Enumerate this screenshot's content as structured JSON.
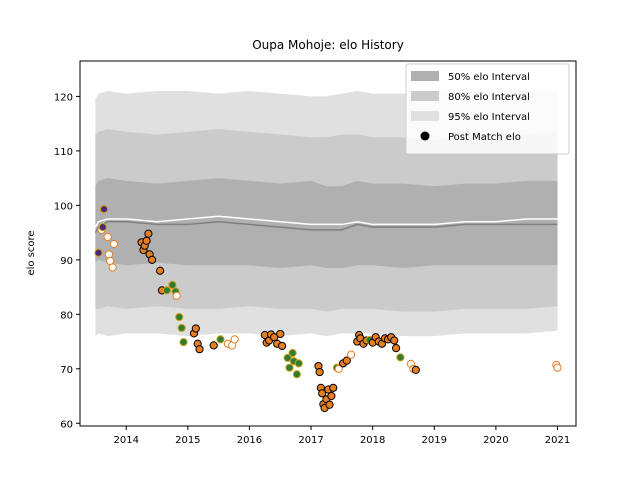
{
  "chart_data": {
    "type": "scatter",
    "title": "Oupa Mohoje: elo History",
    "xlabel": "",
    "ylabel": "elo score",
    "xlim": [
      2013.25,
      2021.3
    ],
    "ylim": [
      59.5,
      126.5
    ],
    "xticks": [
      2014,
      2015,
      2016,
      2017,
      2018,
      2019,
      2020,
      2021
    ],
    "yticks": [
      60,
      70,
      80,
      90,
      100,
      110,
      120
    ],
    "grid": false,
    "legend_position": "top-right",
    "colors": {
      "band_50": "#b0b0b0",
      "band_80": "#cbcbcb",
      "band_95": "#e0e0e0",
      "median_line": "#7f7f7f",
      "mean_line": "#ffffff",
      "point_fill_win": "#e67e22",
      "point_fill_draw": "#2e7d32",
      "point_fill_extra": "#4a2a73",
      "point_edge_dark": "#000000",
      "point_edge_light": "#d4a017",
      "point_open_edge": "#e67e22"
    },
    "legend": [
      {
        "label": "50% elo Interval",
        "kind": "band",
        "color_key": "band_50"
      },
      {
        "label": "80% elo Interval",
        "kind": "band",
        "color_key": "band_80"
      },
      {
        "label": "95% elo Interval",
        "kind": "band",
        "color_key": "band_95"
      },
      {
        "label": "Post Match elo",
        "kind": "point"
      }
    ],
    "bands": {
      "x": [
        2013.5,
        2013.55,
        2013.7,
        2014.0,
        2014.5,
        2015.0,
        2015.5,
        2016.0,
        2016.5,
        2017.0,
        2017.25,
        2017.5,
        2017.75,
        2018.0,
        2018.5,
        2019.0,
        2019.5,
        2020.0,
        2020.5,
        2021.0
      ],
      "p50_high": [
        103.5,
        104.5,
        105.0,
        104.5,
        104.0,
        104.5,
        105.0,
        104.5,
        104.0,
        104.5,
        103.5,
        103.5,
        104.5,
        104.0,
        104.0,
        103.5,
        104.0,
        104.0,
        104.5,
        104.5
      ],
      "p50_low": [
        89.5,
        90.0,
        89.5,
        89.0,
        89.5,
        89.0,
        89.0,
        89.0,
        88.5,
        89.0,
        88.5,
        88.5,
        89.0,
        89.0,
        88.5,
        89.0,
        89.0,
        89.0,
        89.0,
        89.0
      ],
      "p80_high": [
        113.0,
        113.5,
        114.0,
        113.5,
        113.0,
        113.5,
        114.0,
        113.5,
        113.0,
        112.5,
        112.5,
        113.0,
        113.0,
        112.5,
        112.5,
        112.0,
        112.5,
        113.0,
        113.0,
        113.5
      ],
      "p80_low": [
        81.0,
        81.0,
        81.5,
        81.0,
        81.5,
        81.0,
        81.0,
        81.5,
        81.0,
        81.0,
        80.5,
        81.0,
        81.0,
        81.0,
        80.5,
        80.5,
        81.0,
        81.0,
        81.0,
        81.5
      ],
      "p95_high": [
        119.5,
        120.5,
        121.0,
        120.5,
        121.0,
        121.0,
        120.5,
        121.0,
        120.5,
        120.0,
        120.0,
        120.5,
        121.0,
        120.5,
        120.5,
        121.0,
        121.0,
        120.5,
        121.0,
        121.0
      ],
      "p95_low": [
        76.0,
        76.5,
        76.0,
        76.5,
        76.5,
        76.0,
        76.5,
        76.5,
        76.0,
        76.5,
        76.0,
        76.5,
        76.5,
        76.5,
        76.0,
        76.0,
        76.5,
        76.5,
        76.5,
        77.0
      ],
      "median": [
        95.0,
        96.0,
        97.0,
        97.0,
        96.5,
        96.5,
        97.0,
        96.5,
        96.0,
        95.5,
        95.5,
        95.5,
        96.5,
        96.0,
        96.0,
        96.0,
        96.5,
        96.5,
        96.5,
        96.5
      ],
      "mean": [
        96.0,
        97.0,
        97.5,
        97.5,
        97.0,
        97.5,
        98.0,
        97.5,
        97.0,
        96.5,
        96.5,
        96.5,
        97.0,
        96.5,
        96.5,
        96.5,
        97.0,
        97.0,
        97.5,
        97.5
      ]
    },
    "points": [
      {
        "x": 2013.55,
        "y": 91.3,
        "style": "extra"
      },
      {
        "x": 2013.6,
        "y": 95.5,
        "style": "open"
      },
      {
        "x": 2013.62,
        "y": 96.0,
        "style": "extra"
      },
      {
        "x": 2013.64,
        "y": 99.3,
        "style": "extra"
      },
      {
        "x": 2013.7,
        "y": 94.2,
        "style": "open"
      },
      {
        "x": 2013.72,
        "y": 91.0,
        "style": "open"
      },
      {
        "x": 2013.74,
        "y": 89.8,
        "style": "open"
      },
      {
        "x": 2013.78,
        "y": 88.6,
        "style": "open"
      },
      {
        "x": 2013.8,
        "y": 92.9,
        "style": "open"
      },
      {
        "x": 2014.25,
        "y": 93.2,
        "style": "win"
      },
      {
        "x": 2014.28,
        "y": 91.8,
        "style": "win"
      },
      {
        "x": 2014.3,
        "y": 92.6,
        "style": "win"
      },
      {
        "x": 2014.33,
        "y": 93.5,
        "style": "win"
      },
      {
        "x": 2014.36,
        "y": 94.8,
        "style": "win"
      },
      {
        "x": 2014.38,
        "y": 91.0,
        "style": "win"
      },
      {
        "x": 2014.42,
        "y": 90.0,
        "style": "win"
      },
      {
        "x": 2014.55,
        "y": 88.0,
        "style": "win"
      },
      {
        "x": 2014.58,
        "y": 84.4,
        "style": "win"
      },
      {
        "x": 2014.66,
        "y": 84.4,
        "style": "draw"
      },
      {
        "x": 2014.75,
        "y": 85.4,
        "style": "draw"
      },
      {
        "x": 2014.8,
        "y": 84.2,
        "style": "draw"
      },
      {
        "x": 2014.82,
        "y": 83.4,
        "style": "open"
      },
      {
        "x": 2014.86,
        "y": 79.5,
        "style": "draw"
      },
      {
        "x": 2014.9,
        "y": 77.5,
        "style": "draw"
      },
      {
        "x": 2014.93,
        "y": 74.9,
        "style": "draw"
      },
      {
        "x": 2015.1,
        "y": 76.5,
        "style": "win"
      },
      {
        "x": 2015.13,
        "y": 77.4,
        "style": "win"
      },
      {
        "x": 2015.16,
        "y": 74.6,
        "style": "win"
      },
      {
        "x": 2015.19,
        "y": 73.6,
        "style": "win"
      },
      {
        "x": 2015.42,
        "y": 74.3,
        "style": "win"
      },
      {
        "x": 2015.53,
        "y": 75.4,
        "style": "draw"
      },
      {
        "x": 2015.65,
        "y": 74.6,
        "style": "open"
      },
      {
        "x": 2015.72,
        "y": 74.3,
        "style": "open"
      },
      {
        "x": 2015.76,
        "y": 75.4,
        "style": "open"
      },
      {
        "x": 2016.25,
        "y": 76.2,
        "style": "win"
      },
      {
        "x": 2016.28,
        "y": 74.8,
        "style": "win"
      },
      {
        "x": 2016.32,
        "y": 75.2,
        "style": "win"
      },
      {
        "x": 2016.35,
        "y": 76.3,
        "style": "win"
      },
      {
        "x": 2016.4,
        "y": 75.8,
        "style": "win"
      },
      {
        "x": 2016.45,
        "y": 74.6,
        "style": "win"
      },
      {
        "x": 2016.5,
        "y": 76.4,
        "style": "win"
      },
      {
        "x": 2016.53,
        "y": 74.2,
        "style": "win"
      },
      {
        "x": 2016.62,
        "y": 72.0,
        "style": "draw"
      },
      {
        "x": 2016.65,
        "y": 70.2,
        "style": "draw"
      },
      {
        "x": 2016.7,
        "y": 72.9,
        "style": "draw"
      },
      {
        "x": 2016.72,
        "y": 71.4,
        "style": "draw"
      },
      {
        "x": 2016.77,
        "y": 69.0,
        "style": "draw"
      },
      {
        "x": 2016.8,
        "y": 71.0,
        "style": "draw"
      },
      {
        "x": 2017.12,
        "y": 70.5,
        "style": "win"
      },
      {
        "x": 2017.14,
        "y": 69.4,
        "style": "win"
      },
      {
        "x": 2017.16,
        "y": 66.5,
        "style": "win"
      },
      {
        "x": 2017.18,
        "y": 65.5,
        "style": "win"
      },
      {
        "x": 2017.2,
        "y": 63.5,
        "style": "win"
      },
      {
        "x": 2017.22,
        "y": 62.8,
        "style": "win"
      },
      {
        "x": 2017.25,
        "y": 64.4,
        "style": "win"
      },
      {
        "x": 2017.28,
        "y": 66.2,
        "style": "win"
      },
      {
        "x": 2017.3,
        "y": 63.4,
        "style": "win"
      },
      {
        "x": 2017.33,
        "y": 65.0,
        "style": "win"
      },
      {
        "x": 2017.36,
        "y": 66.5,
        "style": "win"
      },
      {
        "x": 2017.42,
        "y": 70.2,
        "style": "draw"
      },
      {
        "x": 2017.45,
        "y": 70.0,
        "style": "open"
      },
      {
        "x": 2017.52,
        "y": 71.0,
        "style": "win"
      },
      {
        "x": 2017.58,
        "y": 71.5,
        "style": "win"
      },
      {
        "x": 2017.65,
        "y": 72.6,
        "style": "open"
      },
      {
        "x": 2017.75,
        "y": 75.0,
        "style": "win"
      },
      {
        "x": 2017.78,
        "y": 76.2,
        "style": "win"
      },
      {
        "x": 2017.8,
        "y": 75.6,
        "style": "win"
      },
      {
        "x": 2017.85,
        "y": 74.6,
        "style": "win"
      },
      {
        "x": 2017.9,
        "y": 75.2,
        "style": "win"
      },
      {
        "x": 2017.95,
        "y": 75.3,
        "style": "draw"
      },
      {
        "x": 2018.0,
        "y": 74.8,
        "style": "win"
      },
      {
        "x": 2018.05,
        "y": 75.8,
        "style": "win"
      },
      {
        "x": 2018.1,
        "y": 75.0,
        "style": "win"
      },
      {
        "x": 2018.15,
        "y": 74.6,
        "style": "win"
      },
      {
        "x": 2018.2,
        "y": 75.6,
        "style": "win"
      },
      {
        "x": 2018.25,
        "y": 75.4,
        "style": "win"
      },
      {
        "x": 2018.3,
        "y": 75.8,
        "style": "win"
      },
      {
        "x": 2018.35,
        "y": 75.2,
        "style": "win"
      },
      {
        "x": 2018.38,
        "y": 73.8,
        "style": "win"
      },
      {
        "x": 2018.45,
        "y": 72.1,
        "style": "draw"
      },
      {
        "x": 2018.62,
        "y": 70.9,
        "style": "open"
      },
      {
        "x": 2018.66,
        "y": 70.0,
        "style": "open"
      },
      {
        "x": 2018.7,
        "y": 69.8,
        "style": "win"
      },
      {
        "x": 2020.98,
        "y": 70.7,
        "style": "open"
      },
      {
        "x": 2021.0,
        "y": 70.2,
        "style": "open"
      }
    ]
  }
}
